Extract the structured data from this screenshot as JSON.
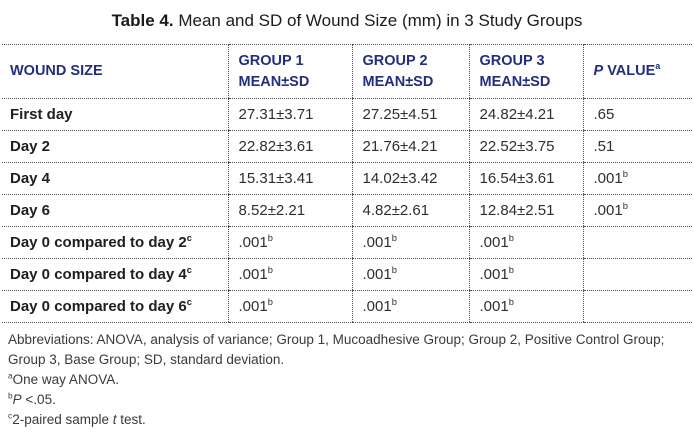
{
  "title": {
    "prefix": "Table 4.",
    "text": " Mean and SD of Wound Size (mm) in 3 Study Groups"
  },
  "table": {
    "headers": {
      "col1": "WOUND SIZE",
      "col2": {
        "line1": "GROUP 1",
        "line2": "MEAN±SD"
      },
      "col3": {
        "line1": "GROUP 2",
        "line2": "MEAN±SD"
      },
      "col4": {
        "line1": "GROUP 3",
        "line2": "MEAN±SD"
      },
      "col5": {
        "italic": "P",
        "rest": " VALUE",
        "sup": "a"
      }
    },
    "rows": [
      {
        "label": "First day",
        "label_sup": "",
        "cells": [
          {
            "v": "27.31±3.71"
          },
          {
            "v": "27.25±4.51"
          },
          {
            "v": "24.82±4.21"
          },
          {
            "v": ".65"
          }
        ]
      },
      {
        "label": "Day 2",
        "label_sup": "",
        "cells": [
          {
            "v": "22.82±3.61"
          },
          {
            "v": "21.76±4.21"
          },
          {
            "v": "22.52±3.75"
          },
          {
            "v": ".51"
          }
        ]
      },
      {
        "label": "Day 4",
        "label_sup": "",
        "cells": [
          {
            "v": "15.31±3.41"
          },
          {
            "v": "14.02±3.42"
          },
          {
            "v": "16.54±3.61"
          },
          {
            "v": ".001",
            "s": "b"
          }
        ]
      },
      {
        "label": "Day 6",
        "label_sup": "",
        "cells": [
          {
            "v": "8.52±2.21"
          },
          {
            "v": "4.82±2.61"
          },
          {
            "v": "12.84±2.51"
          },
          {
            "v": ".001",
            "s": "b"
          }
        ]
      },
      {
        "label": "Day 0 compared to day 2",
        "label_sup": "c",
        "cells": [
          {
            "v": ".001",
            "s": "b"
          },
          {
            "v": ".001",
            "s": "b"
          },
          {
            "v": ".001",
            "s": "b"
          },
          {
            "v": ""
          }
        ]
      },
      {
        "label": "Day 0 compared to day 4",
        "label_sup": "c",
        "cells": [
          {
            "v": ".001",
            "s": "b"
          },
          {
            "v": ".001",
            "s": "b"
          },
          {
            "v": ".001",
            "s": "b"
          },
          {
            "v": ""
          }
        ]
      },
      {
        "label": "Day 0 compared to day 6",
        "label_sup": "c",
        "cells": [
          {
            "v": ".001",
            "s": "b"
          },
          {
            "v": ".001",
            "s": "b"
          },
          {
            "v": ".001",
            "s": "b"
          },
          {
            "v": ""
          }
        ]
      }
    ]
  },
  "footnotes": [
    {
      "sup": "",
      "parts": [
        {
          "t": "Abbreviations: ANOVA, analysis of variance; Group 1, Mucoadhesive Group; Group 2, Positive Control Group; Group 3, Base Group; SD, standard deviation."
        }
      ]
    },
    {
      "sup": "a",
      "parts": [
        {
          "t": "One way ANOVA."
        }
      ]
    },
    {
      "sup": "b",
      "parts": [
        {
          "t": "P",
          "i": true
        },
        {
          "t": " <.05."
        }
      ]
    },
    {
      "sup": "c",
      "parts": [
        {
          "t": "2-paired sample "
        },
        {
          "t": "t",
          "i": true
        },
        {
          "t": " test."
        }
      ]
    }
  ],
  "colors": {
    "header_text": "#232e7d",
    "body_text": "#2e2e34",
    "border": "#4f4f4f"
  }
}
